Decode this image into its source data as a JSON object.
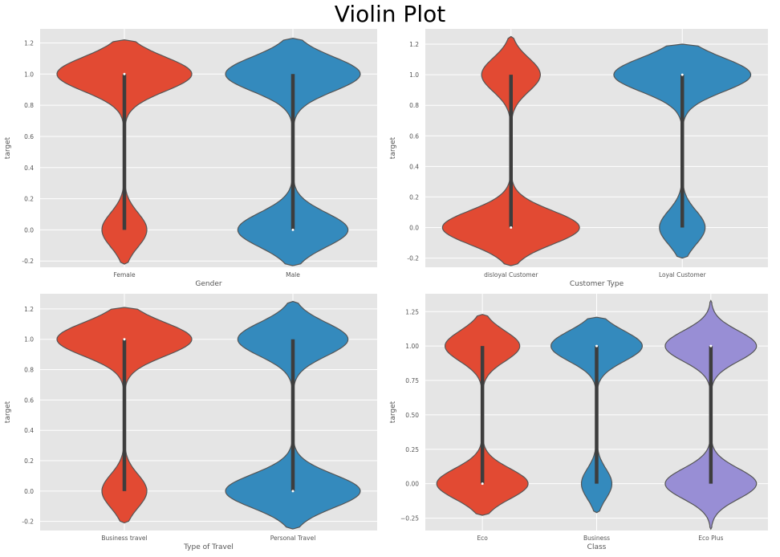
{
  "figure": {
    "title": "Violin Plot"
  },
  "colors": {
    "c0": "#E24A33",
    "c1": "#348ABD",
    "c2": "#988ED5",
    "bg": "#E5E5E5",
    "grid": "#FFFFFF",
    "edge": "#555555"
  },
  "chart_data": [
    {
      "type": "violin",
      "xlabel": "Gender",
      "ylabel": "target",
      "ylim": [
        -0.24,
        1.29
      ],
      "yticks": [
        -0.2,
        0.0,
        0.2,
        0.4,
        0.6,
        0.8,
        1.0,
        1.2
      ],
      "ytick_labels": [
        "-0.2",
        "0.0",
        "0.2",
        "0.4",
        "0.6",
        "0.8",
        "1.0",
        "1.2"
      ],
      "categories": [
        "Female",
        "Male"
      ],
      "proportion_one": [
        0.75,
        0.55
      ],
      "y_range": [
        [
          -0.22,
          1.22
        ],
        [
          -0.23,
          1.23
        ]
      ],
      "median": [
        1.0,
        0.0
      ],
      "q1": [
        0.0,
        0.0
      ],
      "q3": [
        1.0,
        1.0
      ]
    },
    {
      "type": "violin",
      "xlabel": "Customer Type",
      "ylabel": "target",
      "ylim": [
        -0.26,
        1.3
      ],
      "yticks": [
        -0.2,
        0.0,
        0.2,
        0.4,
        0.6,
        0.8,
        1.0,
        1.2
      ],
      "ytick_labels": [
        "-0.2",
        "0.0",
        "0.2",
        "0.4",
        "0.6",
        "0.8",
        "1.0",
        "1.2"
      ],
      "categories": [
        "disloyal Customer",
        "Loyal Customer"
      ],
      "proportion_one": [
        0.3,
        0.75
      ],
      "y_range": [
        [
          -0.25,
          1.25
        ],
        [
          -0.2,
          1.2
        ]
      ],
      "median": [
        0.0,
        1.0
      ],
      "q1": [
        0.0,
        0.0
      ],
      "q3": [
        1.0,
        1.0
      ]
    },
    {
      "type": "violin",
      "xlabel": "Type of Travel",
      "ylabel": "target",
      "ylim": [
        -0.26,
        1.3
      ],
      "yticks": [
        -0.2,
        0.0,
        0.2,
        0.4,
        0.6,
        0.8,
        1.0,
        1.2
      ],
      "ytick_labels": [
        "-0.2",
        "0.0",
        "0.2",
        "0.4",
        "0.6",
        "0.8",
        "1.0",
        "1.2"
      ],
      "categories": [
        "Business travel",
        "Personal Travel"
      ],
      "proportion_one": [
        0.75,
        0.45
      ],
      "y_range": [
        [
          -0.21,
          1.21
        ],
        [
          -0.25,
          1.25
        ]
      ],
      "median": [
        1.0,
        0.0
      ],
      "q1": [
        0.0,
        0.0
      ],
      "q3": [
        1.0,
        1.0
      ]
    },
    {
      "type": "violin",
      "xlabel": "Class",
      "ylabel": "target",
      "ylim": [
        -0.34,
        1.38
      ],
      "yticks": [
        -0.25,
        0.0,
        0.25,
        0.5,
        0.75,
        1.0,
        1.25
      ],
      "ytick_labels": [
        "−0.25",
        "0.00",
        "0.25",
        "0.50",
        "0.75",
        "1.00",
        "1.25"
      ],
      "categories": [
        "Eco",
        "Business",
        "Eco Plus"
      ],
      "proportion_one": [
        0.45,
        0.75,
        0.5
      ],
      "y_range": [
        [
          -0.23,
          1.23
        ],
        [
          -0.21,
          1.21
        ],
        [
          -0.33,
          1.33
        ]
      ],
      "median": [
        0.0,
        1.0,
        1.0
      ],
      "q1": [
        0.0,
        0.0,
        0.0
      ],
      "q3": [
        1.0,
        1.0,
        1.0
      ]
    }
  ]
}
